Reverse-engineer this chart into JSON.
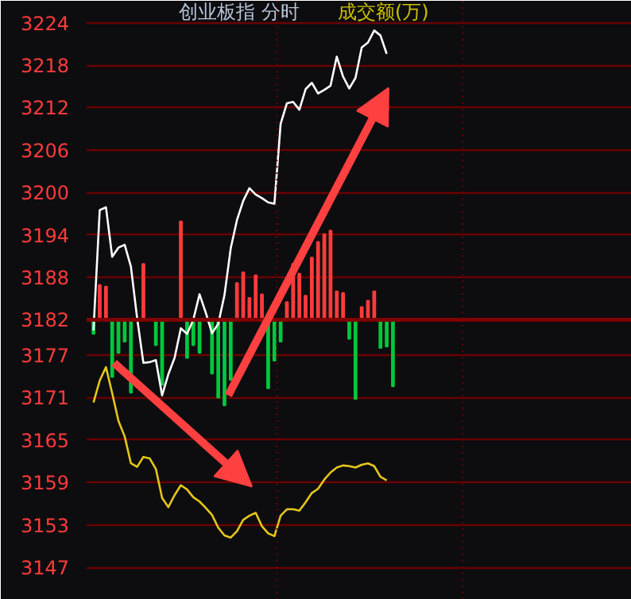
{
  "chart_data": {
    "type": "line",
    "title": "创业板指  分时",
    "subtitle": "成交额(万)",
    "categories": [
      null,
      null,
      null,
      null,
      null,
      null,
      null,
      null,
      null,
      null,
      null,
      null,
      null,
      null,
      null,
      null,
      null,
      null,
      null,
      null,
      null,
      null,
      null,
      null,
      null,
      null,
      null,
      null,
      null,
      null,
      null,
      null,
      null,
      null,
      null,
      null,
      null,
      null,
      null,
      null,
      null,
      null,
      null,
      null,
      null,
      null,
      null,
      null,
      null
    ],
    "ylim": [
      3142.4,
      3227.1
    ],
    "yticks": [
      3224,
      3218,
      3212,
      3206,
      3200,
      3194,
      3188,
      3182,
      3177,
      3171,
      3165,
      3159,
      3153,
      3147
    ],
    "grid": "y",
    "tick_labels": "y",
    "ref_lines": [
      {
        "axis": "y",
        "value": 3182,
        "label": null,
        "color": "#800000"
      }
    ],
    "series": [
      {
        "type": "bar",
        "values": [
          -2.0,
          4.9,
          4.7,
          -8.1,
          -4.7,
          -3.1,
          -10.3,
          0,
          7.9,
          0,
          -3.6,
          -9.2,
          0,
          0,
          13.9,
          -5.4,
          -3.6,
          -4.7,
          0,
          -7.6,
          -11.0,
          -12.1,
          -8.5,
          5.2,
          6.7,
          3.1,
          6.3,
          3.6,
          -9.7,
          -5.8,
          -3.1,
          2.5,
          7.9,
          6.5,
          3.4,
          8.8,
          11.0,
          12.1,
          12.6,
          4.0,
          3.8,
          -2.7,
          -11.2,
          1.8,
          2.7,
          4.0,
          -4.0,
          -3.8,
          -9.4
        ],
        "colors": [
          "#00c83c",
          "#ff3b3b",
          "#ff3b3b",
          "#00c83c",
          "#00c83c",
          "#00c83c",
          "#00c83c",
          "#ff3b3b",
          "#ff3b3b",
          "#ff3b3b",
          "#00c83c",
          "#00c83c",
          "#ff3b3b",
          "#ff3b3b",
          "#ff3b3b",
          "#00c83c",
          "#00c83c",
          "#00c83c",
          "#ff3b3b",
          "#00c83c",
          "#00c83c",
          "#00c83c",
          "#00c83c",
          "#ff3b3b",
          "#ff3b3b",
          "#ff3b3b",
          "#ff3b3b",
          "#ff3b3b",
          "#00c83c",
          "#00c83c",
          "#00c83c",
          "#ff3b3b",
          "#ff3b3b",
          "#ff3b3b",
          "#ff3b3b",
          "#ff3b3b",
          "#ff3b3b",
          "#ff3b3b",
          "#ff3b3b",
          "#ff3b3b",
          "#ff3b3b",
          "#00c83c",
          "#00c83c",
          "#ff3b3b",
          "#ff3b3b",
          "#ff3b3b",
          "#00c83c",
          "#00c83c",
          "#00c83c"
        ],
        "base": [
          3182,
          3182,
          3182,
          3182,
          3182,
          3182,
          3182,
          3182,
          3182,
          3182,
          3182,
          3182,
          3182,
          3182,
          3182,
          3182,
          3182,
          3182,
          3182,
          3182,
          3182,
          3182,
          3182,
          3182,
          3182,
          3182,
          3182,
          3182,
          3182,
          3182,
          3182,
          3182,
          3182,
          3182,
          3182,
          3182,
          3182,
          3182,
          3182,
          3182,
          3182,
          3182,
          3182,
          3182,
          3182,
          3182,
          3182,
          3182,
          3182
        ]
      },
      {
        "color": "#ffffff",
        "values": [
          3180.5,
          3197.5,
          3197.9,
          3190.9,
          3192.2,
          3192.6,
          3189.5,
          3182.2,
          3175.9,
          3176.0,
          3176.3,
          3171.3,
          3174.3,
          3176.6,
          3180.8,
          3180.0,
          3182.0,
          3185.6,
          3183.0,
          3180.1,
          3181.4,
          3185.5,
          3192.1,
          3196.1,
          3198.8,
          3200.6,
          3199.7,
          3199.2,
          3198.6,
          3198.4,
          3209.7,
          3212.6,
          3212.8,
          3211.7,
          3214.6,
          3215.5,
          3214.0,
          3214.5,
          3215.1,
          3219.2,
          3216.4,
          3214.7,
          3216.2,
          3220.5,
          3221.2,
          3222.9,
          3222.2,
          3219.6,
          null
        ]
      },
      {
        "color": "#e6c619",
        "values": [
          3170.3,
          3173.4,
          3175.3,
          3171.6,
          3167.7,
          3165.5,
          3161.7,
          3161.2,
          3162.6,
          3162.4,
          3160.9,
          3156.8,
          3155.5,
          3157.2,
          3158.6,
          3158.0,
          3156.9,
          3156.3,
          3155.4,
          3154.4,
          3152.6,
          3151.5,
          3151.2,
          3152.1,
          3153.7,
          3154.3,
          3154.7,
          3152.8,
          3151.8,
          3151.4,
          3154.3,
          3155.2,
          3155.2,
          3155.0,
          3156.2,
          3157.5,
          3158.1,
          3159.4,
          3160.4,
          3161.1,
          3161.4,
          3161.3,
          3161.1,
          3161.5,
          3161.7,
          3161.3,
          3159.8,
          3159.3,
          null
        ]
      }
    ]
  }
}
